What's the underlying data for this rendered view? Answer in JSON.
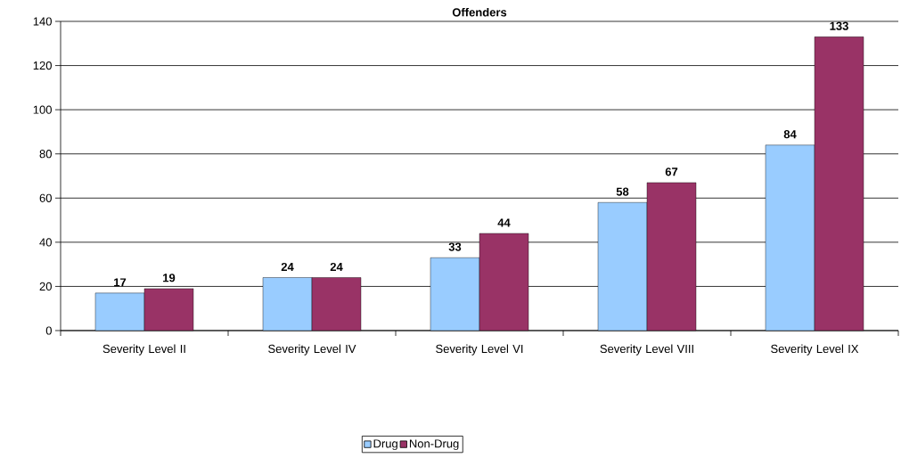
{
  "chart_data": {
    "type": "bar",
    "title": "Offenders",
    "categories": [
      "Severity Level II",
      "Severity Level IV",
      "Severity Level VI",
      "Severity Level VIII",
      "Severity Level IX"
    ],
    "series": [
      {
        "name": "Drug",
        "color": "#99ccff",
        "values": [
          17,
          24,
          33,
          58,
          84
        ]
      },
      {
        "name": "Non-Drug",
        "color": "#993366",
        "values": [
          19,
          24,
          44,
          67,
          133
        ]
      }
    ],
    "ylim": [
      0,
      140
    ],
    "yticks": [
      0,
      20,
      40,
      60,
      80,
      100,
      120,
      140
    ],
    "grid": "y",
    "legend": "bottom",
    "data_labels": true
  }
}
